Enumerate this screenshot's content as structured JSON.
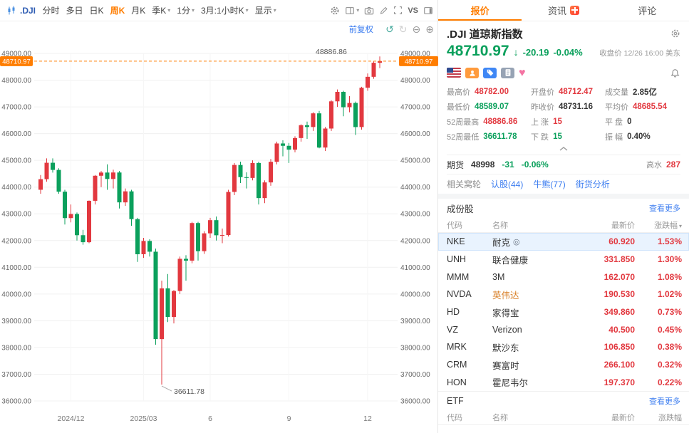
{
  "icons": {
    "undo": "↺",
    "redo": "↻",
    "zoom_out": "⊖",
    "zoom_in": "⊕",
    "heart": "♥",
    "watch": "◎",
    "caret_down": "▾",
    "arrow_down": "↓"
  },
  "toolbar": {
    "symbol": ".DJI",
    "vs_label": "VS",
    "items": [
      {
        "key": "time-sharing",
        "label": "分时"
      },
      {
        "key": "multi-day",
        "label": "多日"
      },
      {
        "key": "daily-k",
        "label": "日K"
      },
      {
        "key": "weekly-k",
        "label": "周K",
        "active": true
      },
      {
        "key": "monthly-k",
        "label": "月K"
      },
      {
        "key": "quarterly-k",
        "label": "季K",
        "dropdown": true
      },
      {
        "key": "one-minute",
        "label": "1分",
        "dropdown": true
      },
      {
        "key": "range-period",
        "label": "3月:1小时K",
        "dropdown": true
      },
      {
        "key": "display",
        "label": "显示",
        "dropdown": true
      }
    ]
  },
  "chart": {
    "adjust_label": "前复权"
  },
  "chart_data": {
    "type": "candlestick",
    "title": ".DJI 道琼斯指数 周K 前复权",
    "ylim": [
      36000,
      49000
    ],
    "y_ticks": [
      49000,
      48000,
      47000,
      46000,
      45000,
      44000,
      43000,
      42000,
      41000,
      40000,
      39000,
      38000,
      37000,
      36000
    ],
    "current_price": 48710.97,
    "high_annotation": 48886.86,
    "low_annotation": 36611.78,
    "up_color": "#e2383f",
    "down_color": "#0ba05c",
    "accent": "#ff7d00",
    "x_labels": [
      {
        "text": "2024/12",
        "week": 5
      },
      {
        "text": "2025/03",
        "week": 17
      },
      {
        "text": "6",
        "week": 28
      },
      {
        "text": "9",
        "week": 41
      },
      {
        "text": "12",
        "week": 54
      }
    ],
    "candles": [
      [
        43900,
        44450,
        43750,
        44296
      ],
      [
        44296,
        45073,
        44200,
        44910
      ],
      [
        44910,
        45073,
        44540,
        44642
      ],
      [
        44642,
        44705,
        43750,
        43828
      ],
      [
        43828,
        43900,
        42600,
        42840
      ],
      [
        42840,
        43350,
        42680,
        42992
      ],
      [
        42992,
        43050,
        42000,
        42200
      ],
      [
        42200,
        42400,
        41844,
        41938
      ],
      [
        41938,
        43500,
        41900,
        43487
      ],
      [
        43487,
        44450,
        43350,
        44424
      ],
      [
        44424,
        44600,
        44000,
        44544
      ],
      [
        44544,
        44850,
        43900,
        44303
      ],
      [
        44303,
        44650,
        43950,
        44546
      ],
      [
        44546,
        44600,
        43200,
        43428
      ],
      [
        43428,
        43950,
        43300,
        43840
      ],
      [
        43840,
        43900,
        42550,
        42801
      ],
      [
        42801,
        42850,
        41200,
        41488
      ],
      [
        41488,
        42100,
        41350,
        41985
      ],
      [
        41985,
        42050,
        41400,
        41583
      ],
      [
        41583,
        41700,
        38100,
        38314
      ],
      [
        38314,
        40500,
        36611.78,
        40212
      ],
      [
        40212,
        40750,
        38950,
        39142
      ],
      [
        39142,
        40150,
        38900,
        40113
      ],
      [
        40113,
        41400,
        40000,
        41317
      ],
      [
        41317,
        41450,
        40500,
        41249
      ],
      [
        41249,
        42700,
        41150,
        42654
      ],
      [
        42654,
        42700,
        41250,
        41603
      ],
      [
        41603,
        42350,
        41500,
        42270
      ],
      [
        42270,
        42850,
        42100,
        42762
      ],
      [
        42762,
        42900,
        42000,
        42197
      ],
      [
        42197,
        42450,
        41900,
        42206
      ],
      [
        42206,
        43900,
        42150,
        43819
      ],
      [
        43819,
        44900,
        43700,
        44828
      ],
      [
        44828,
        44950,
        44150,
        44371
      ],
      [
        44371,
        44550,
        43950,
        44342
      ],
      [
        44342,
        45000,
        44250,
        44901
      ],
      [
        44901,
        44950,
        43350,
        43588
      ],
      [
        43588,
        44250,
        43400,
        44175
      ],
      [
        44175,
        45050,
        44050,
        44946
      ],
      [
        44946,
        45700,
        44850,
        45631
      ],
      [
        45631,
        45750,
        45150,
        45544
      ],
      [
        45544,
        45650,
        44900,
        45400
      ],
      [
        45400,
        45900,
        45300,
        45834
      ],
      [
        45834,
        46350,
        45700,
        46315
      ],
      [
        46315,
        46450,
        45800,
        46247
      ],
      [
        46247,
        46800,
        46100,
        46758
      ],
      [
        46758,
        46850,
        45450,
        45479
      ],
      [
        45479,
        46250,
        45350,
        46190
      ],
      [
        46190,
        47250,
        46100,
        47207
      ],
      [
        47207,
        47650,
        47000,
        47562
      ],
      [
        47562,
        47600,
        46650,
        46987
      ],
      [
        46987,
        47400,
        46800,
        47147
      ],
      [
        47147,
        47200,
        45950,
        46245
      ],
      [
        46245,
        47750,
        46150,
        47716
      ],
      [
        47716,
        48250,
        47600,
        48125
      ],
      [
        48125,
        48704,
        48050,
        48650
      ],
      [
        48650,
        48886.86,
        48450,
        48710.97
      ]
    ]
  },
  "quote": {
    "tabs": [
      {
        "key": "quote",
        "label": "报价",
        "active": true
      },
      {
        "key": "news",
        "label": "资讯",
        "badge": true
      },
      {
        "key": "comments",
        "label": "评论"
      }
    ],
    "name": ".DJI 道琼斯指数",
    "price": "48710.97",
    "arrow": "↓",
    "change": "-20.19",
    "change_pct": "-0.04%",
    "status": "收盘价 12/26 16:00 美东",
    "stats": [
      {
        "key": "high",
        "label": "最高价",
        "value": "48782.00",
        "color": "up"
      },
      {
        "key": "open",
        "label": "开盘价",
        "value": "48712.47",
        "color": "up"
      },
      {
        "key": "volume",
        "label": "成交量",
        "value": "2.85亿",
        "color": "flat"
      },
      {
        "key": "low",
        "label": "最低价",
        "value": "48589.07",
        "color": "down"
      },
      {
        "key": "prev-close",
        "label": "昨收价",
        "value": "48731.16",
        "color": "flat"
      },
      {
        "key": "avg-price",
        "label": "平均价",
        "value": "48685.54",
        "color": "up"
      },
      {
        "key": "52wk-high",
        "label": "52周最高",
        "value": "48886.86",
        "color": "up"
      },
      {
        "key": "advancers",
        "label": "上 涨",
        "value": "15",
        "color": "up"
      },
      {
        "key": "unchanged",
        "label": "平 盘",
        "value": "0",
        "color": "flat"
      },
      {
        "key": "52wk-low",
        "label": "52周最低",
        "value": "36611.78",
        "color": "down"
      },
      {
        "key": "decliners",
        "label": "下 跌",
        "value": "15",
        "color": "down"
      },
      {
        "key": "amplitude",
        "label": "振 幅",
        "value": "0.40%",
        "color": "flat"
      }
    ],
    "futures": {
      "label": "期货",
      "price": "48998",
      "change": "-31",
      "change_pct": "-0.06%",
      "premium_label": "高水",
      "premium_value": "287"
    },
    "warrants": {
      "label": "相关窝轮",
      "links": [
        {
          "key": "call-warrants",
          "label": "认股(44)"
        },
        {
          "key": "bull-bear",
          "label": "牛熊(77)"
        },
        {
          "key": "street-analysis",
          "label": "街货分析"
        }
      ]
    },
    "components": {
      "title": "成份股",
      "more": "查看更多",
      "headers": [
        "代码",
        "名称",
        "最新价",
        "涨跌幅"
      ],
      "rows": [
        {
          "code": "NKE",
          "name": "耐克",
          "price": "60.920",
          "change": "1.53%",
          "selected": true,
          "watch": true
        },
        {
          "code": "UNH",
          "name": "联合健康",
          "price": "331.850",
          "change": "1.30%"
        },
        {
          "code": "MMM",
          "name": "3M",
          "price": "162.070",
          "change": "1.08%"
        },
        {
          "code": "NVDA",
          "name": "英伟达",
          "price": "190.530",
          "change": "1.02%",
          "name_color": "#d9822b"
        },
        {
          "code": "HD",
          "name": "家得宝",
          "price": "349.860",
          "change": "0.73%"
        },
        {
          "code": "VZ",
          "name": "Verizon",
          "price": "40.500",
          "change": "0.45%"
        },
        {
          "code": "MRK",
          "name": "默沙东",
          "price": "106.850",
          "change": "0.38%"
        },
        {
          "code": "CRM",
          "name": "赛富时",
          "price": "266.100",
          "change": "0.32%"
        },
        {
          "code": "HON",
          "name": "霍尼韦尔",
          "price": "197.370",
          "change": "0.22%"
        }
      ]
    },
    "etf": {
      "title": "ETF",
      "more": "查看更多",
      "headers": [
        "代码",
        "名称",
        "最新价",
        "涨跌幅"
      ]
    }
  }
}
